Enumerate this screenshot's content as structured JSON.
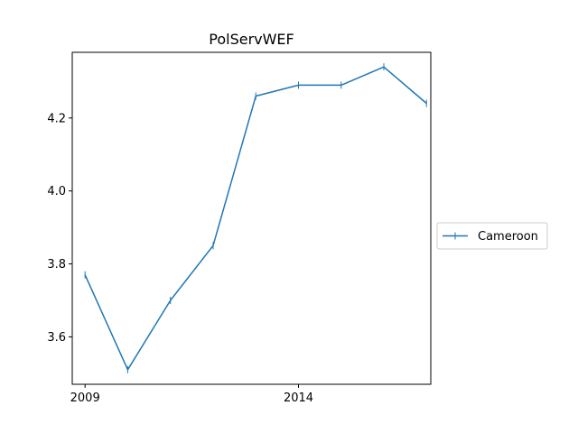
{
  "chart_data": {
    "type": "line",
    "title": "PolServWEF",
    "xlabel": "",
    "ylabel": "",
    "x": [
      2009,
      2010,
      2011,
      2012,
      2013,
      2014,
      2015,
      2016,
      2017
    ],
    "series": [
      {
        "name": "Cameroon",
        "color": "#1f77b4",
        "marker": "vertical-tick",
        "values": [
          3.77,
          3.51,
          3.7,
          3.85,
          4.26,
          4.29,
          4.29,
          4.34,
          4.24
        ]
      }
    ],
    "xlim": [
      2008.7,
      2017.1
    ],
    "ylim": [
      3.47,
      4.38
    ],
    "xticks": [
      2009,
      2014
    ],
    "xtick_labels": [
      "2009",
      "2014"
    ],
    "yticks": [
      3.6,
      3.8,
      4.0,
      4.2
    ],
    "ytick_labels": [
      "3.6",
      "3.8",
      "4.0",
      "4.2"
    ],
    "grid": false,
    "legend_position": "right, outside plot"
  }
}
